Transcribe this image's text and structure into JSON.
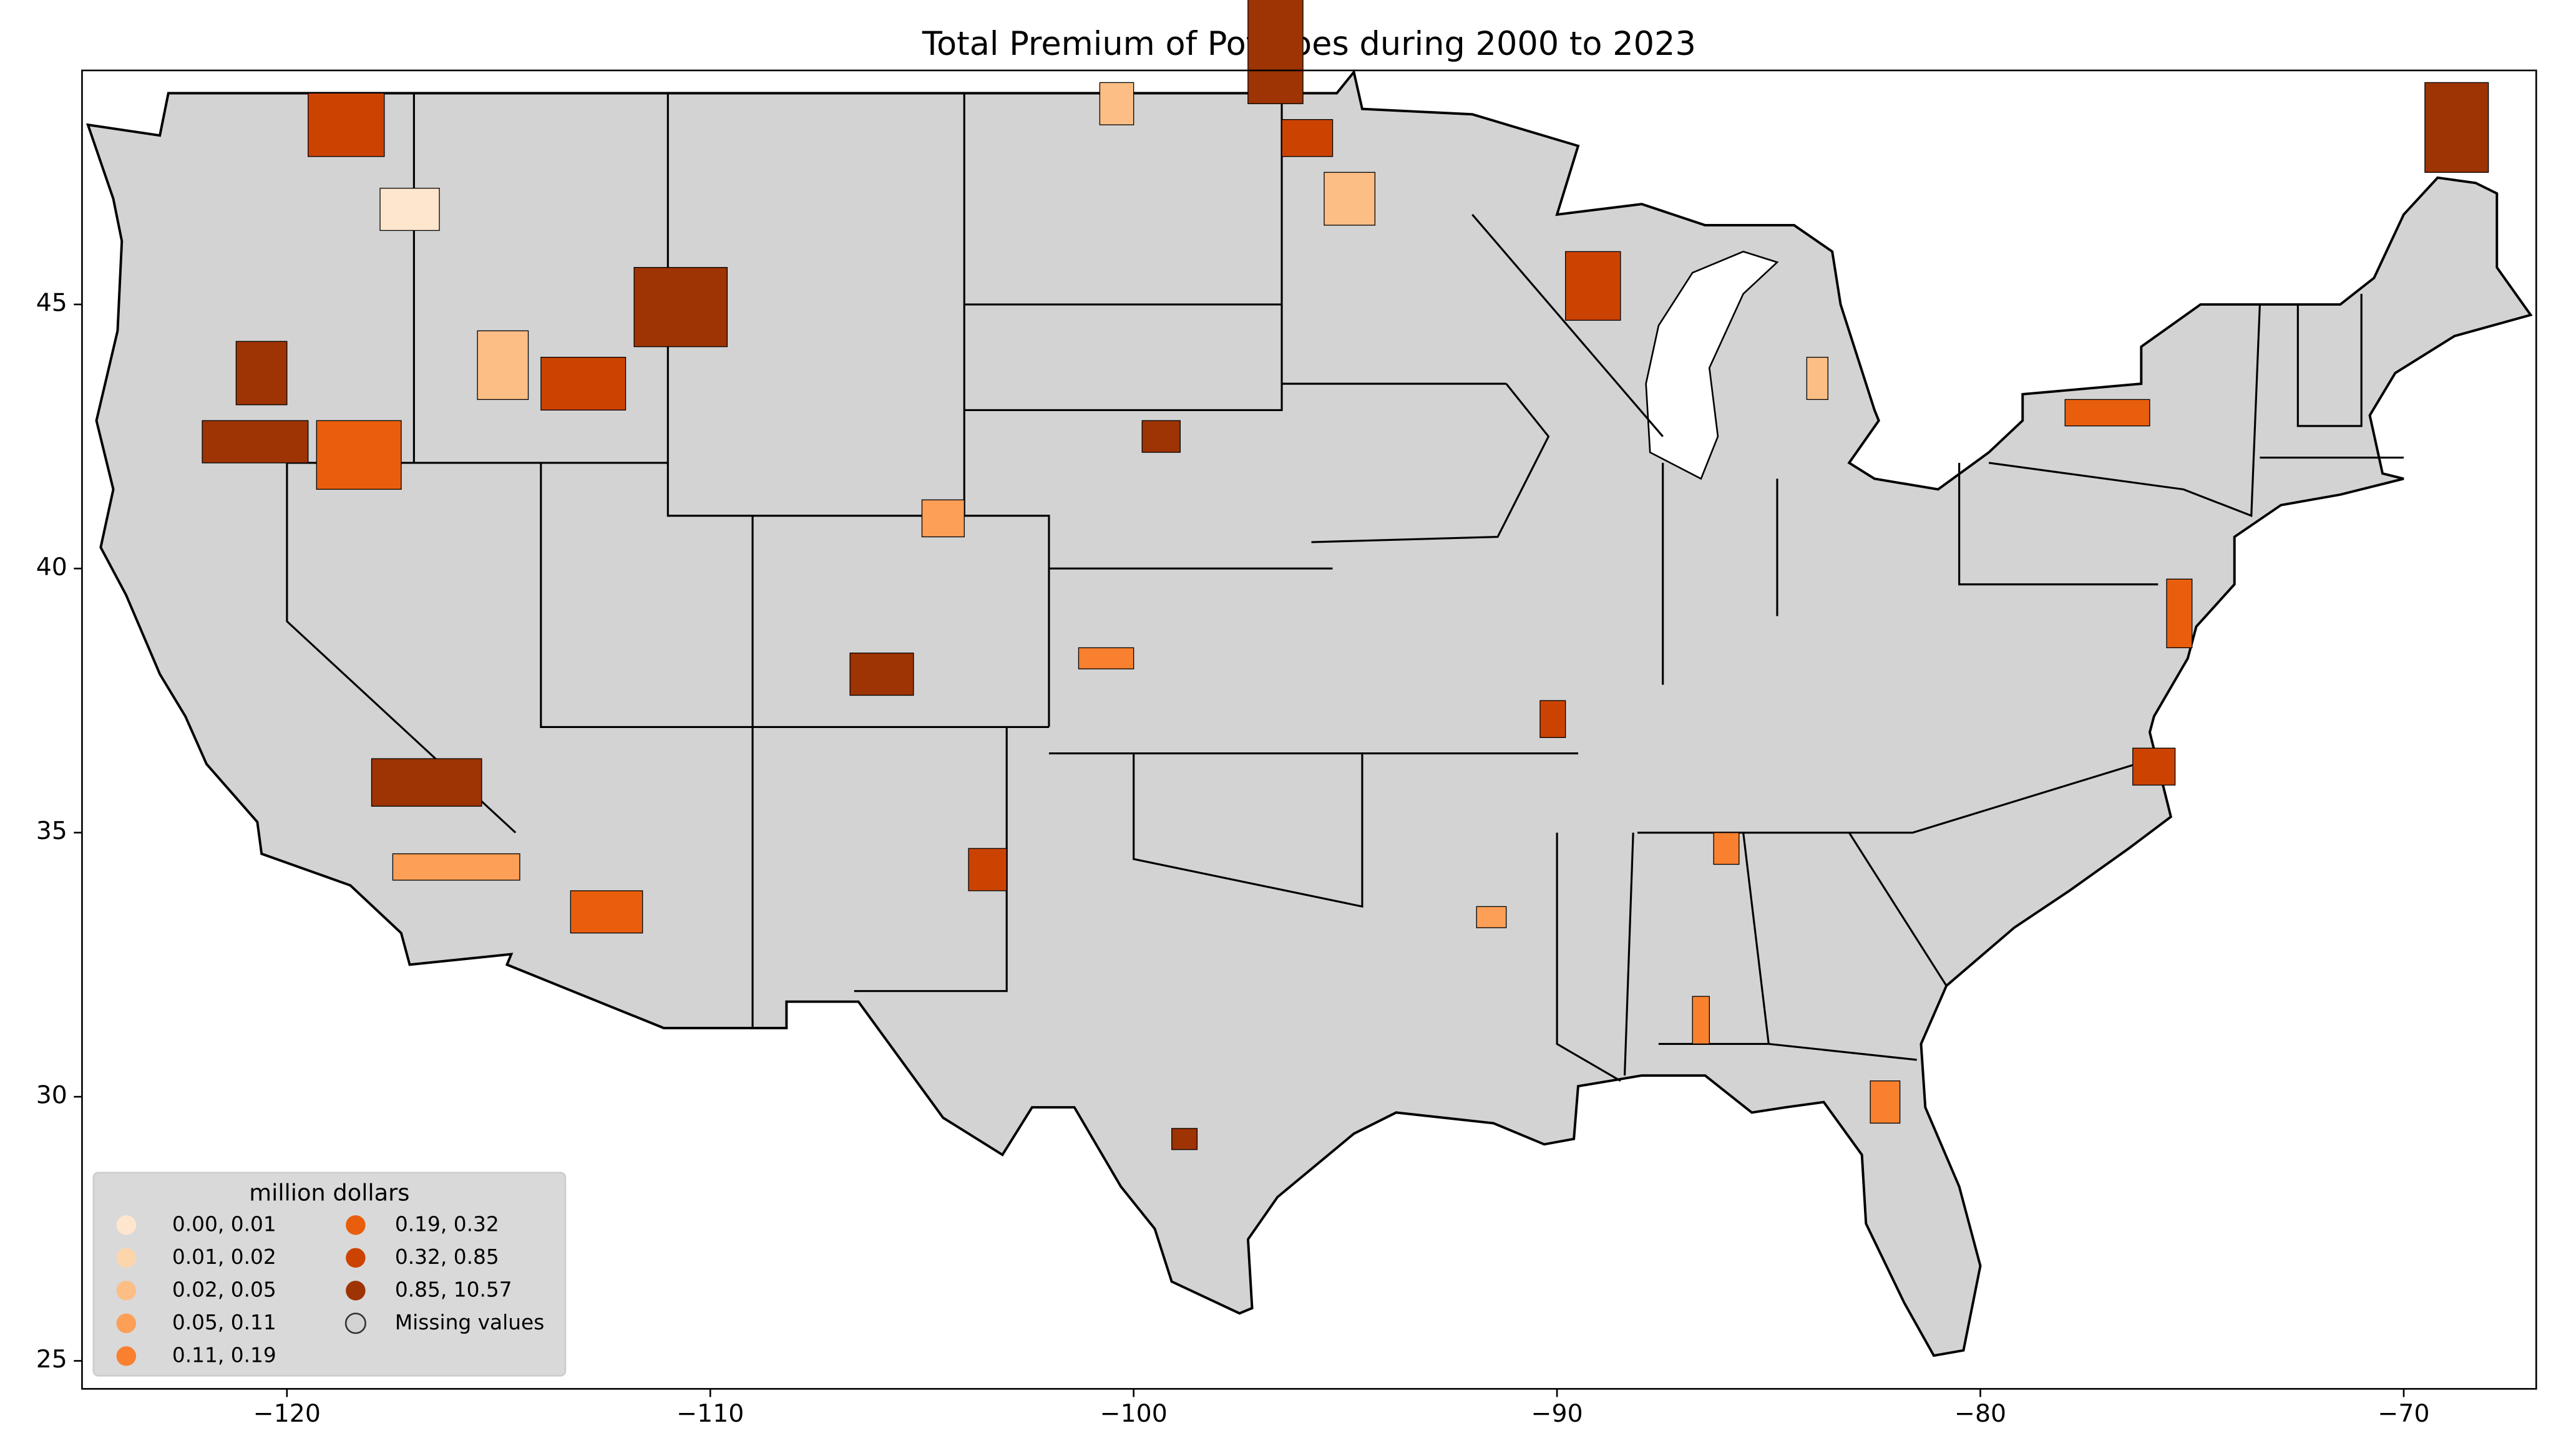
{
  "chart_data": {
    "type": "choropleth",
    "title": "Total  Premium of Potatoes during 2000 to 2023",
    "xlim": [
      -124.84,
      -66.87
    ],
    "ylim": [
      24.47,
      49.43
    ],
    "xticks": [
      {
        "value": -120,
        "label": "−120"
      },
      {
        "value": -110,
        "label": "−110"
      },
      {
        "value": -100,
        "label": "−100"
      },
      {
        "value": -90,
        "label": "−90"
      },
      {
        "value": -80,
        "label": "−80"
      },
      {
        "value": -70,
        "label": "−70"
      }
    ],
    "yticks": [
      25,
      30,
      35,
      40,
      45
    ],
    "missing_color": "#d3d3d3",
    "legend": {
      "title": "million dollars",
      "corner": "lower left",
      "entries": [
        {
          "label": "0.00,  0.01",
          "color": "#fee6ce"
        },
        {
          "label": "0.01,  0.02",
          "color": "#fdd5ab"
        },
        {
          "label": "0.02,  0.05",
          "color": "#fdbe85"
        },
        {
          "label": "0.05,  0.11",
          "color": "#fd9f56"
        },
        {
          "label": "0.11,  0.19",
          "color": "#f8802f"
        },
        {
          "label": "0.19,  0.32",
          "color": "#e95e0d"
        },
        {
          "label": "0.32,  0.85",
          "color": "#cc4301"
        },
        {
          "label": "0.85, 10.57",
          "color": "#9e3303"
        },
        {
          "label": "Missing values",
          "color": "#d3d3d3"
        }
      ]
    }
  }
}
